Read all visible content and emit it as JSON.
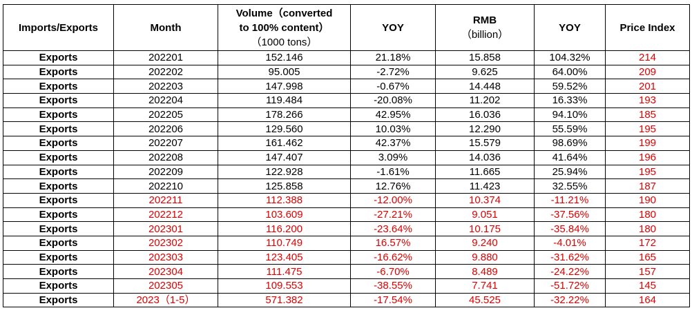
{
  "headers": {
    "kind": "Imports/Exports",
    "month": "Month",
    "volume_l1": "Volume（converted",
    "volume_l2": "to 100% content）",
    "volume_l3": "（1000 tons）",
    "yoy1": "YOY",
    "rmb_l1": "RMB",
    "rmb_l2": "（billion）",
    "yoy2": "YOY",
    "price": "Price Index"
  },
  "colors": {
    "highlight": "#e00000",
    "text": "#000000"
  },
  "rows": [
    {
      "kind": "Exports",
      "month": "202201",
      "volume": "152.146",
      "yoy1": "21.18%",
      "rmb": "15.858",
      "yoy2": "104.32%",
      "price": "214",
      "red": false
    },
    {
      "kind": "Exports",
      "month": "202202",
      "volume": "95.005",
      "yoy1": "-2.72%",
      "rmb": "9.625",
      "yoy2": "64.00%",
      "price": "209",
      "red": false
    },
    {
      "kind": "Exports",
      "month": "202203",
      "volume": "147.998",
      "yoy1": "-0.67%",
      "rmb": "14.448",
      "yoy2": "59.52%",
      "price": "201",
      "red": false
    },
    {
      "kind": "Exports",
      "month": "202204",
      "volume": "119.484",
      "yoy1": "-20.08%",
      "rmb": "11.202",
      "yoy2": "16.33%",
      "price": "193",
      "red": false
    },
    {
      "kind": "Exports",
      "month": "202205",
      "volume": "178.266",
      "yoy1": "42.95%",
      "rmb": "16.036",
      "yoy2": "94.10%",
      "price": "185",
      "red": false
    },
    {
      "kind": "Exports",
      "month": "202206",
      "volume": "129.560",
      "yoy1": "10.03%",
      "rmb": "12.290",
      "yoy2": "55.59%",
      "price": "195",
      "red": false
    },
    {
      "kind": "Exports",
      "month": "202207",
      "volume": "161.462",
      "yoy1": "42.37%",
      "rmb": "15.579",
      "yoy2": "98.69%",
      "price": "199",
      "red": false
    },
    {
      "kind": "Exports",
      "month": "202208",
      "volume": "147.407",
      "yoy1": "3.09%",
      "rmb": "14.036",
      "yoy2": "41.64%",
      "price": "196",
      "red": false
    },
    {
      "kind": "Exports",
      "month": "202209",
      "volume": "122.928",
      "yoy1": "-1.61%",
      "rmb": "11.665",
      "yoy2": "25.94%",
      "price": "195",
      "red": false
    },
    {
      "kind": "Exports",
      "month": "202210",
      "volume": "125.858",
      "yoy1": "12.76%",
      "rmb": "11.423",
      "yoy2": "32.55%",
      "price": "187",
      "red": false
    },
    {
      "kind": "Exports",
      "month": "202211",
      "volume": "112.388",
      "yoy1": "-12.00%",
      "rmb": "10.374",
      "yoy2": "-11.21%",
      "price": "190",
      "red": true
    },
    {
      "kind": "Exports",
      "month": "202212",
      "volume": "103.609",
      "yoy1": "-27.21%",
      "rmb": "9.051",
      "yoy2": "-37.56%",
      "price": "180",
      "red": true
    },
    {
      "kind": "Exports",
      "month": "202301",
      "volume": "116.200",
      "yoy1": "-23.64%",
      "rmb": "10.175",
      "yoy2": "-35.84%",
      "price": "180",
      "red": true
    },
    {
      "kind": "Exports",
      "month": "202302",
      "volume": "110.749",
      "yoy1": "16.57%",
      "rmb": "9.240",
      "yoy2": "-4.01%",
      "price": "172",
      "red": true
    },
    {
      "kind": "Exports",
      "month": "202303",
      "volume": "123.405",
      "yoy1": "-16.62%",
      "rmb": "9.880",
      "yoy2": "-31.62%",
      "price": "165",
      "red": true
    },
    {
      "kind": "Exports",
      "month": "202304",
      "volume": "111.475",
      "yoy1": "-6.70%",
      "rmb": "8.489",
      "yoy2": "-24.22%",
      "price": "157",
      "red": true
    },
    {
      "kind": "Exports",
      "month": "202305",
      "volume": "109.553",
      "yoy1": "-38.55%",
      "rmb": "7.741",
      "yoy2": "-51.72%",
      "price": "145",
      "red": true
    },
    {
      "kind": "Exports",
      "month": "2023（1-5）",
      "volume": "571.382",
      "yoy1": "-17.54%",
      "rmb": "45.525",
      "yoy2": "-32.22%",
      "price": "164",
      "red": true
    }
  ]
}
